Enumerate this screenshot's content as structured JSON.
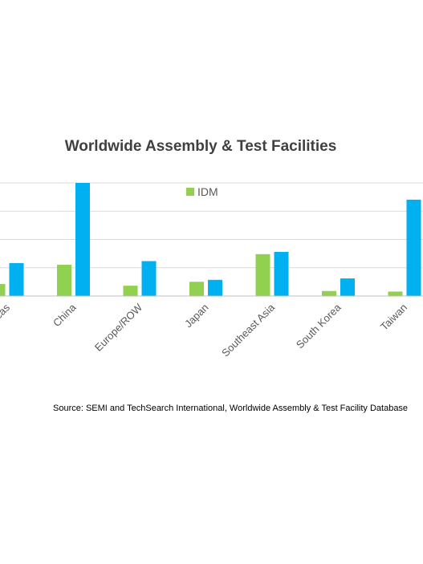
{
  "chart_data": {
    "type": "bar",
    "title": "Worldwide Assembly & Test Facilities",
    "categories": [
      "Americas",
      "China",
      "Europe/ROW",
      "Japan",
      "Southeast Asia",
      "South Korea",
      "Taiwan"
    ],
    "series": [
      {
        "name": "IDM",
        "color": "#92D050",
        "values": [
          4.3,
          11.2,
          3.7,
          5.1,
          15.0,
          1.8,
          1.6
        ]
      },
      {
        "color": "#00B0F0",
        "values": [
          11.8,
          40.5,
          12.5,
          5.8,
          15.8,
          6.3,
          34.5
        ]
      }
    ],
    "ylim": [
      0,
      40.5
    ],
    "grid": true,
    "legend_position": "top-center",
    "xlabel": "",
    "ylabel": ""
  },
  "source": "Source: SEMI and TechSearch International, Worldwide Assembly & Test Facility Database"
}
